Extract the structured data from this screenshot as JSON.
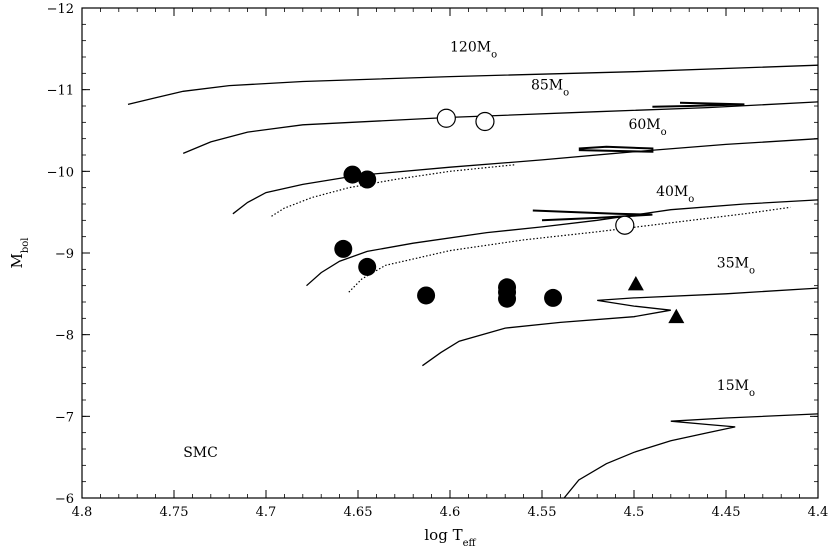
{
  "chart_data": {
    "type": "scatter",
    "title": "",
    "xlabel": "log T_eff",
    "ylabel": "M_bol",
    "xlim": [
      4.8,
      4.4
    ],
    "ylim": [
      -6,
      -12
    ],
    "xticks": [
      "4.8",
      "4.75",
      "4.7",
      "4.65",
      "4.6",
      "4.55",
      "4.5",
      "4.45",
      "4.4"
    ],
    "yticks": [
      "-12",
      "-11",
      "-10",
      "-9",
      "-8",
      "-7",
      "-6"
    ],
    "grid": false,
    "legend": "none",
    "annotation": "SMC",
    "tracks": [
      {
        "label": "120M",
        "sub": "o",
        "label_at": [
          4.6,
          -11.47
        ],
        "points": [
          [
            4.775,
            -10.82
          ],
          [
            4.76,
            -10.9
          ],
          [
            4.745,
            -10.98
          ],
          [
            4.72,
            -11.05
          ],
          [
            4.68,
            -11.1
          ],
          [
            4.6,
            -11.16
          ],
          [
            4.5,
            -11.22
          ],
          [
            4.4,
            -11.3
          ]
        ]
      },
      {
        "label": "85M",
        "sub": "o",
        "label_at": [
          4.556,
          -11.0
        ],
        "points": [
          [
            4.745,
            -10.22
          ],
          [
            4.73,
            -10.36
          ],
          [
            4.71,
            -10.48
          ],
          [
            4.68,
            -10.57
          ],
          [
            4.6,
            -10.66
          ],
          [
            4.52,
            -10.73
          ],
          [
            4.46,
            -10.78
          ],
          [
            4.4,
            -10.85
          ]
        ],
        "branch": [
          [
            4.475,
            -10.84
          ],
          [
            4.44,
            -10.82
          ],
          [
            4.47,
            -10.8
          ],
          [
            4.49,
            -10.79
          ]
        ]
      },
      {
        "label": "60M",
        "sub": "o",
        "label_at": [
          4.503,
          -10.52
        ],
        "points": [
          [
            4.718,
            -9.48
          ],
          [
            4.71,
            -9.62
          ],
          [
            4.7,
            -9.74
          ],
          [
            4.68,
            -9.84
          ],
          [
            4.65,
            -9.95
          ],
          [
            4.6,
            -10.05
          ],
          [
            4.55,
            -10.14
          ],
          [
            4.5,
            -10.24
          ],
          [
            4.45,
            -10.33
          ],
          [
            4.4,
            -10.4
          ]
        ],
        "branch": [
          [
            4.53,
            -10.26
          ],
          [
            4.49,
            -10.24
          ],
          [
            4.49,
            -10.28
          ],
          [
            4.515,
            -10.3
          ],
          [
            4.53,
            -10.28
          ]
        ]
      },
      {
        "label": "40M",
        "sub": "o",
        "label_at": [
          4.488,
          -9.7
        ],
        "points": [
          [
            4.678,
            -8.6
          ],
          [
            4.67,
            -8.76
          ],
          [
            4.66,
            -8.9
          ],
          [
            4.645,
            -9.02
          ],
          [
            4.62,
            -9.12
          ],
          [
            4.58,
            -9.25
          ],
          [
            4.55,
            -9.32
          ],
          [
            4.52,
            -9.4
          ],
          [
            4.48,
            -9.53
          ],
          [
            4.44,
            -9.6
          ],
          [
            4.4,
            -9.65
          ]
        ],
        "branch": [
          [
            4.555,
            -9.52
          ],
          [
            4.51,
            -9.48
          ],
          [
            4.49,
            -9.47
          ],
          [
            4.52,
            -9.43
          ],
          [
            4.55,
            -9.4
          ]
        ]
      },
      {
        "label": "35M",
        "sub": "o",
        "label_at": [
          4.455,
          -8.82
        ],
        "points": [
          [
            4.615,
            -7.62
          ],
          [
            4.605,
            -7.78
          ],
          [
            4.595,
            -7.92
          ],
          [
            4.57,
            -8.08
          ],
          [
            4.54,
            -8.15
          ],
          [
            4.5,
            -8.22
          ],
          [
            4.48,
            -8.3
          ],
          [
            4.5,
            -8.35
          ],
          [
            4.52,
            -8.42
          ],
          [
            4.5,
            -8.45
          ],
          [
            4.45,
            -8.5
          ],
          [
            4.4,
            -8.57
          ]
        ]
      },
      {
        "label": "15M",
        "sub": "o",
        "label_at": [
          4.455,
          -7.32
        ],
        "points": [
          [
            4.538,
            -6.0
          ],
          [
            4.53,
            -6.22
          ],
          [
            4.515,
            -6.42
          ],
          [
            4.5,
            -6.56
          ],
          [
            4.48,
            -6.7
          ],
          [
            4.46,
            -6.8
          ],
          [
            4.445,
            -6.87
          ],
          [
            4.46,
            -6.9
          ],
          [
            4.48,
            -6.94
          ],
          [
            4.45,
            -6.98
          ],
          [
            4.4,
            -7.03
          ]
        ]
      }
    ],
    "dotted_tracks": [
      {
        "points": [
          [
            4.697,
            -9.45
          ],
          [
            4.69,
            -9.55
          ],
          [
            4.675,
            -9.68
          ],
          [
            4.655,
            -9.8
          ],
          [
            4.63,
            -9.9
          ],
          [
            4.6,
            -10.0
          ],
          [
            4.565,
            -10.08
          ]
        ]
      },
      {
        "points": [
          [
            4.655,
            -8.52
          ],
          [
            4.648,
            -8.68
          ],
          [
            4.635,
            -8.85
          ],
          [
            4.6,
            -9.03
          ],
          [
            4.56,
            -9.16
          ],
          [
            4.52,
            -9.26
          ],
          [
            4.48,
            -9.37
          ],
          [
            4.44,
            -9.48
          ],
          [
            4.415,
            -9.56
          ]
        ]
      }
    ],
    "series": [
      {
        "marker": "filled-circle",
        "points": [
          [
            4.653,
            -9.96
          ],
          [
            4.645,
            -9.9
          ],
          [
            4.658,
            -9.05
          ],
          [
            4.645,
            -8.83
          ],
          [
            4.613,
            -8.48
          ],
          [
            4.569,
            -8.44
          ],
          [
            4.569,
            -8.52
          ],
          [
            4.569,
            -8.58
          ],
          [
            4.544,
            -8.45
          ]
        ]
      },
      {
        "marker": "open-circle",
        "points": [
          [
            4.602,
            -10.65
          ],
          [
            4.581,
            -10.61
          ],
          [
            4.505,
            -9.34
          ]
        ]
      },
      {
        "marker": "filled-triangle",
        "points": [
          [
            4.499,
            -8.62
          ],
          [
            4.477,
            -8.22
          ]
        ]
      }
    ]
  }
}
